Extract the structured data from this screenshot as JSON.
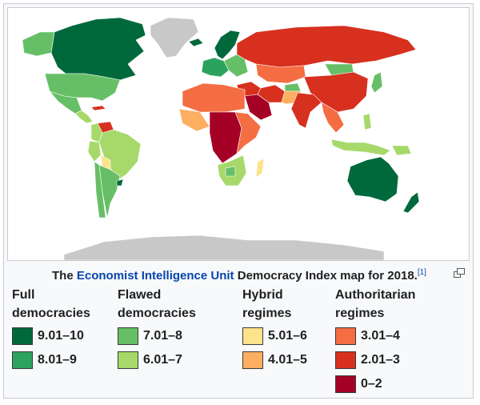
{
  "map": {
    "ocean_color": "#ffffff",
    "no_data_color": "#c8c8c8",
    "regions": [
      {
        "name": "Greenland",
        "color": "#c8c8c8"
      },
      {
        "name": "Canada",
        "color": "#00693b"
      },
      {
        "name": "Alaska",
        "color": "#66bf67"
      },
      {
        "name": "United States",
        "color": "#66bf67"
      },
      {
        "name": "Mexico",
        "color": "#66bf67"
      },
      {
        "name": "Central America",
        "color": "#a6d96a"
      },
      {
        "name": "Cuba",
        "color": "#d7301f"
      },
      {
        "name": "Venezuela",
        "color": "#d7301f"
      },
      {
        "name": "Colombia",
        "color": "#a6d96a"
      },
      {
        "name": "Brazil",
        "color": "#a6d96a"
      },
      {
        "name": "Peru",
        "color": "#a6d96a"
      },
      {
        "name": "Bolivia",
        "color": "#fde38c"
      },
      {
        "name": "Chile",
        "color": "#66bf67"
      },
      {
        "name": "Argentina",
        "color": "#66bf67"
      },
      {
        "name": "Uruguay",
        "color": "#00693b"
      },
      {
        "name": "Iceland",
        "color": "#00693b"
      },
      {
        "name": "Scandinavia",
        "color": "#00693b"
      },
      {
        "name": "Western Europe",
        "color": "#2ca25f"
      },
      {
        "name": "Eastern Europe",
        "color": "#66bf67"
      },
      {
        "name": "Russia",
        "color": "#d7301f"
      },
      {
        "name": "Kazakhstan",
        "color": "#f46d43"
      },
      {
        "name": "Mongolia",
        "color": "#66bf67"
      },
      {
        "name": "China",
        "color": "#d7301f"
      },
      {
        "name": "Middle East",
        "color": "#d7301f"
      },
      {
        "name": "Saudi Arabia",
        "color": "#a50026"
      },
      {
        "name": "Iran",
        "color": "#d7301f"
      },
      {
        "name": "India",
        "color": "#66bf67"
      },
      {
        "name": "Pakistan",
        "color": "#fdae61"
      },
      {
        "name": "Afghanistan",
        "color": "#d7301f"
      },
      {
        "name": "Southeast Asia",
        "color": "#f46d43"
      },
      {
        "name": "Japan",
        "color": "#66bf67"
      },
      {
        "name": "North Africa",
        "color": "#f46d43"
      },
      {
        "name": "West Africa",
        "color": "#fdae61"
      },
      {
        "name": "Central Africa",
        "color": "#a50026"
      },
      {
        "name": "East Africa",
        "color": "#f46d43"
      },
      {
        "name": "Southern Africa",
        "color": "#a6d96a"
      },
      {
        "name": "Botswana",
        "color": "#66bf67"
      },
      {
        "name": "Madagascar",
        "color": "#fde38c"
      },
      {
        "name": "Indonesia",
        "color": "#a6d96a"
      },
      {
        "name": "Philippines",
        "color": "#a6d96a"
      },
      {
        "name": "Papua New Guinea",
        "color": "#a6d96a"
      },
      {
        "name": "Australia",
        "color": "#00693b"
      },
      {
        "name": "New Zealand",
        "color": "#00693b"
      },
      {
        "name": "Antarctica",
        "color": "#c8c8c8"
      }
    ]
  },
  "caption": {
    "prefix": "The ",
    "link_text": "Economist Intelligence Unit",
    "suffix": " Democracy Index map for 2018.",
    "ref": "[1]"
  },
  "enlarge_icon": "enlarge-icon",
  "legend": [
    {
      "heading": "Full\ndemocracies",
      "items": [
        {
          "label": "9.01–10",
          "color": "#00693b"
        },
        {
          "label": "8.01–9",
          "color": "#2ca25f"
        }
      ]
    },
    {
      "heading": "Flawed\ndemocracies",
      "items": [
        {
          "label": "7.01–8",
          "color": "#66bf67"
        },
        {
          "label": "6.01–7",
          "color": "#a6d96a"
        }
      ]
    },
    {
      "heading": "Hybrid\nregimes",
      "items": [
        {
          "label": "5.01–6",
          "color": "#fde38c"
        },
        {
          "label": "4.01–5",
          "color": "#fdae61"
        }
      ]
    },
    {
      "heading": "Authoritarian\nregimes",
      "items": [
        {
          "label": "3.01–4",
          "color": "#f46d43"
        },
        {
          "label": "2.01–3",
          "color": "#d7301f"
        },
        {
          "label": "0–2",
          "color": "#a50026"
        }
      ]
    }
  ]
}
